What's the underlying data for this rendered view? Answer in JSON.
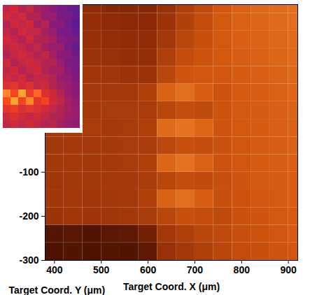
{
  "chart_data": [
    {
      "type": "heatmap",
      "x_label": "Target Coord. X (μm)",
      "y_label": "Target Coord. Y (μm)",
      "xlim": [
        380,
        920
      ],
      "ylim": [
        -300,
        280
      ],
      "xticks": [
        400,
        500,
        600,
        700,
        800,
        900
      ],
      "yticks": [
        -300,
        -200,
        -100
      ],
      "x_edges": [
        380,
        420,
        460,
        500,
        540,
        580,
        620,
        660,
        700,
        740,
        780,
        820,
        860,
        900,
        920
      ],
      "y_edges": [
        -300,
        -260,
        -220,
        -180,
        -140,
        -100,
        -60,
        -20,
        20,
        60,
        100,
        140,
        180,
        220,
        260,
        280
      ],
      "zlim": [
        0,
        1
      ],
      "cells": [
        [
          0.12,
          0.14,
          0.13,
          0.15,
          0.14,
          0.18,
          0.4,
          0.45,
          0.5,
          0.55,
          0.6,
          0.62,
          0.65,
          0.66
        ],
        [
          0.15,
          0.16,
          0.14,
          0.17,
          0.18,
          0.25,
          0.45,
          0.5,
          0.55,
          0.58,
          0.62,
          0.64,
          0.66,
          0.68
        ],
        [
          0.42,
          0.44,
          0.43,
          0.44,
          0.45,
          0.47,
          0.55,
          0.62,
          0.6,
          0.58,
          0.63,
          0.65,
          0.67,
          0.68
        ],
        [
          0.44,
          0.45,
          0.44,
          0.45,
          0.46,
          0.5,
          0.72,
          0.78,
          0.7,
          0.62,
          0.64,
          0.66,
          0.68,
          0.7
        ],
        [
          0.44,
          0.45,
          0.45,
          0.46,
          0.46,
          0.48,
          0.55,
          0.6,
          0.58,
          0.62,
          0.65,
          0.67,
          0.69,
          0.7
        ],
        [
          0.45,
          0.46,
          0.45,
          0.46,
          0.47,
          0.5,
          0.74,
          0.8,
          0.72,
          0.64,
          0.66,
          0.68,
          0.7,
          0.71
        ],
        [
          0.45,
          0.46,
          0.46,
          0.46,
          0.47,
          0.48,
          0.56,
          0.62,
          0.6,
          0.63,
          0.66,
          0.68,
          0.7,
          0.72
        ],
        [
          0.46,
          0.46,
          0.47,
          0.46,
          0.47,
          0.5,
          0.76,
          0.8,
          0.74,
          0.65,
          0.67,
          0.69,
          0.71,
          0.72
        ],
        [
          0.46,
          0.47,
          0.46,
          0.47,
          0.47,
          0.48,
          0.55,
          0.6,
          0.58,
          0.64,
          0.67,
          0.69,
          0.71,
          0.73
        ],
        [
          0.45,
          0.46,
          0.46,
          0.46,
          0.46,
          0.5,
          0.72,
          0.78,
          0.7,
          0.64,
          0.68,
          0.7,
          0.72,
          0.74
        ],
        [
          0.44,
          0.45,
          0.44,
          0.44,
          0.42,
          0.42,
          0.55,
          0.65,
          0.66,
          0.66,
          0.69,
          0.71,
          0.73,
          0.75
        ],
        [
          0.42,
          0.42,
          0.41,
          0.4,
          0.38,
          0.38,
          0.5,
          0.6,
          0.64,
          0.67,
          0.7,
          0.72,
          0.74,
          0.76
        ],
        [
          0.4,
          0.4,
          0.39,
          0.37,
          0.36,
          0.36,
          0.45,
          0.55,
          0.62,
          0.67,
          0.71,
          0.73,
          0.75,
          0.77
        ],
        [
          0.38,
          0.38,
          0.37,
          0.35,
          0.34,
          0.34,
          0.42,
          0.52,
          0.6,
          0.67,
          0.72,
          0.74,
          0.76,
          0.78
        ],
        [
          0.36,
          0.36,
          0.35,
          0.33,
          0.32,
          0.33,
          0.4,
          0.5,
          0.58,
          0.66,
          0.72,
          0.75,
          0.77,
          0.79
        ]
      ]
    },
    {
      "type": "heatmap",
      "tick_labels": false,
      "zlim": [
        0,
        1
      ],
      "cells": [
        [
          0.45,
          0.5,
          0.4,
          0.45,
          0.35,
          0.3,
          0.25,
          0.2,
          0.18,
          0.15
        ],
        [
          0.5,
          0.45,
          0.5,
          0.4,
          0.4,
          0.3,
          0.3,
          0.22,
          0.2,
          0.15
        ],
        [
          0.4,
          0.5,
          0.45,
          0.5,
          0.35,
          0.4,
          0.25,
          0.25,
          0.18,
          0.12
        ],
        [
          0.45,
          0.4,
          0.5,
          0.45,
          0.45,
          0.35,
          0.3,
          0.2,
          0.2,
          0.15
        ],
        [
          0.5,
          0.45,
          0.4,
          0.5,
          0.4,
          0.4,
          0.35,
          0.25,
          0.22,
          0.18
        ],
        [
          0.45,
          0.5,
          0.45,
          0.4,
          0.45,
          0.35,
          0.3,
          0.3,
          0.2,
          0.15
        ],
        [
          0.4,
          0.45,
          0.5,
          0.45,
          0.4,
          0.45,
          0.35,
          0.25,
          0.25,
          0.18
        ],
        [
          0.5,
          0.4,
          0.45,
          0.5,
          0.45,
          0.4,
          0.4,
          0.3,
          0.22,
          0.2
        ],
        [
          0.45,
          0.5,
          0.4,
          0.45,
          0.5,
          0.4,
          0.35,
          0.35,
          0.25,
          0.2
        ],
        [
          0.5,
          0.45,
          0.5,
          0.4,
          0.45,
          0.45,
          0.4,
          0.3,
          0.28,
          0.22
        ],
        [
          0.55,
          0.6,
          0.5,
          0.55,
          0.45,
          0.5,
          0.4,
          0.35,
          0.3,
          0.25
        ],
        [
          0.85,
          0.7,
          0.9,
          0.65,
          0.8,
          0.55,
          0.5,
          0.4,
          0.3,
          0.25
        ],
        [
          0.75,
          0.9,
          0.7,
          0.85,
          0.6,
          0.7,
          0.5,
          0.45,
          0.35,
          0.28
        ],
        [
          0.6,
          0.65,
          0.55,
          0.6,
          0.55,
          0.5,
          0.45,
          0.4,
          0.35,
          0.3
        ],
        [
          0.5,
          0.55,
          0.5,
          0.45,
          0.5,
          0.45,
          0.4,
          0.38,
          0.32,
          0.3
        ],
        [
          0.45,
          0.5,
          0.45,
          0.5,
          0.45,
          0.4,
          0.42,
          0.35,
          0.3,
          0.28
        ]
      ]
    }
  ]
}
